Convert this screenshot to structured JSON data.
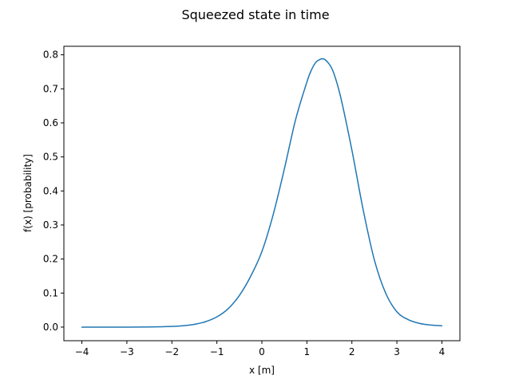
{
  "chart_data": {
    "type": "line",
    "title": "Squeezed state in time",
    "xlabel": "x [m]",
    "ylabel": "f(x) [probability]",
    "xlim": [
      -4.4,
      4.4
    ],
    "ylim": [
      -0.04,
      0.825
    ],
    "xticks": [
      -4,
      -3,
      -2,
      -1,
      0,
      1,
      2,
      3,
      4
    ],
    "xtick_labels": [
      "−4",
      "−3",
      "−2",
      "−1",
      "0",
      "1",
      "2",
      "3",
      "4"
    ],
    "yticks": [
      0.0,
      0.1,
      0.2,
      0.3,
      0.4,
      0.5,
      0.6,
      0.7,
      0.8
    ],
    "ytick_labels": [
      "0.0",
      "0.1",
      "0.2",
      "0.3",
      "0.4",
      "0.5",
      "0.6",
      "0.7",
      "0.8"
    ],
    "grid": false,
    "series": [
      {
        "color": "#1f77b4",
        "x": [
          -4.0,
          -3.5,
          -3.0,
          -2.5,
          -2.0,
          -1.75,
          -1.5,
          -1.25,
          -1.0,
          -0.75,
          -0.5,
          -0.25,
          0.0,
          0.25,
          0.5,
          0.75,
          1.0,
          1.1,
          1.2,
          1.3,
          1.35,
          1.4,
          1.5,
          1.6,
          1.75,
          2.0,
          2.25,
          2.5,
          2.75,
          3.0,
          3.25,
          3.5,
          3.75,
          4.0
        ],
        "y": [
          0.0,
          0.0,
          0.0,
          0.0005,
          0.002,
          0.004,
          0.008,
          0.016,
          0.03,
          0.054,
          0.093,
          0.149,
          0.222,
          0.33,
          0.465,
          0.61,
          0.72,
          0.755,
          0.778,
          0.787,
          0.788,
          0.786,
          0.772,
          0.745,
          0.676,
          0.52,
          0.345,
          0.197,
          0.1,
          0.045,
          0.022,
          0.011,
          0.006,
          0.004
        ]
      }
    ]
  }
}
